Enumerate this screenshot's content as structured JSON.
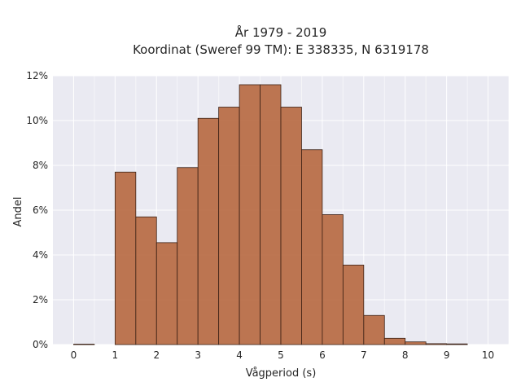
{
  "chart_data": {
    "type": "bar",
    "title_line1": "År 1979 - 2019",
    "title_line2": "Koordinat (Sweref 99 TM): E 338335, N 6319178",
    "xlabel": "Vågperiod (s)",
    "ylabel": "Andel",
    "xlim": [
      -0.5,
      10.5
    ],
    "ylim": [
      0,
      12
    ],
    "x_ticks": [
      0,
      1,
      2,
      3,
      4,
      5,
      6,
      7,
      8,
      9,
      10
    ],
    "y_ticks": [
      0,
      2,
      4,
      6,
      8,
      10,
      12
    ],
    "y_tick_labels": [
      "0%",
      "2%",
      "4%",
      "6%",
      "8%",
      "10%",
      "12%"
    ],
    "bin_width": 0.5,
    "bins": [
      {
        "start": 0.0,
        "value": 0.02
      },
      {
        "start": 0.5,
        "value": 0.0
      },
      {
        "start": 1.0,
        "value": 7.7
      },
      {
        "start": 1.5,
        "value": 5.7
      },
      {
        "start": 2.0,
        "value": 4.55
      },
      {
        "start": 2.5,
        "value": 7.9
      },
      {
        "start": 3.0,
        "value": 10.1
      },
      {
        "start": 3.5,
        "value": 10.6
      },
      {
        "start": 4.0,
        "value": 11.6
      },
      {
        "start": 4.5,
        "value": 11.6
      },
      {
        "start": 5.0,
        "value": 10.6
      },
      {
        "start": 5.5,
        "value": 8.7
      },
      {
        "start": 6.0,
        "value": 5.8
      },
      {
        "start": 6.5,
        "value": 3.55
      },
      {
        "start": 7.0,
        "value": 1.3
      },
      {
        "start": 7.5,
        "value": 0.28
      },
      {
        "start": 8.0,
        "value": 0.12
      },
      {
        "start": 8.5,
        "value": 0.04
      },
      {
        "start": 9.0,
        "value": 0.03
      }
    ],
    "grid": true,
    "bar_color": "#b5643a",
    "background_color": "#eaeaf2"
  }
}
